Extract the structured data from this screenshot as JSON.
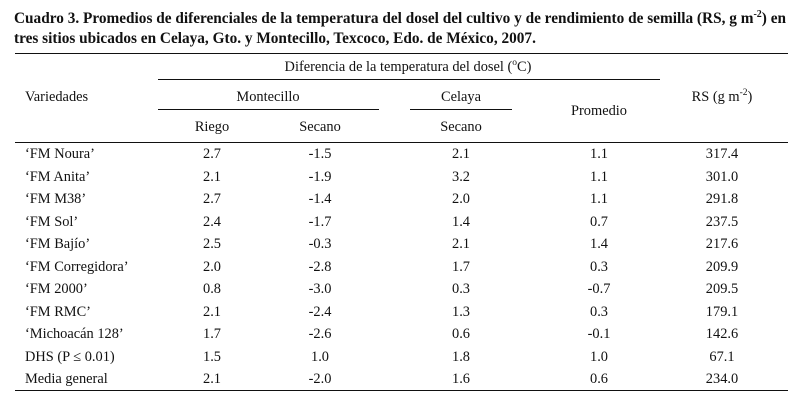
{
  "caption": {
    "label": "Cuadro 3.",
    "text_before_sup": "Promedios de diferenciales de la temperatura del dosel del cultivo y de rendimiento de semilla (RS, g m",
    "sup": "-2",
    "text_after_sup": ") en tres sitios ubicados en Celaya, Gto. y Montecillo, Texcoco, Edo. de México, 2007."
  },
  "header": {
    "variedades": "Variedades",
    "group_title": "Diferencia de la temperatura del dosel (",
    "group_title_sup": "o",
    "group_title_end": "C)",
    "montecillo": "Montecillo",
    "celaya": "Celaya",
    "riego": "Riego",
    "secano": "Secano",
    "celaya_secano": "Secano",
    "promedio": "Promedio",
    "rs": "RS (g m",
    "rs_sup": "-2",
    "rs_end": ")"
  },
  "rows": [
    {
      "variedad": "‘FM Noura’",
      "riego": "2.7",
      "secano": "-1.5",
      "celaya": "2.1",
      "promedio": "1.1",
      "rs": "317.4"
    },
    {
      "variedad": "‘FM Anita’",
      "riego": "2.1",
      "secano": "-1.9",
      "celaya": "3.2",
      "promedio": "1.1",
      "rs": "301.0"
    },
    {
      "variedad": "‘FM M38’",
      "riego": "2.7",
      "secano": "-1.4",
      "celaya": "2.0",
      "promedio": "1.1",
      "rs": "291.8"
    },
    {
      "variedad": "‘FM Sol’",
      "riego": "2.4",
      "secano": "-1.7",
      "celaya": "1.4",
      "promedio": "0.7",
      "rs": "237.5"
    },
    {
      "variedad": "‘FM Bajío’",
      "riego": "2.5",
      "secano": "-0.3",
      "celaya": "2.1",
      "promedio": "1.4",
      "rs": "217.6"
    },
    {
      "variedad": "‘FM Corregidora’",
      "riego": "2.0",
      "secano": "-2.8",
      "celaya": "1.7",
      "promedio": "0.3",
      "rs": "209.9"
    },
    {
      "variedad": "‘FM 2000’",
      "riego": "0.8",
      "secano": "-3.0",
      "celaya": "0.3",
      "promedio": "-0.7",
      "rs": "209.5"
    },
    {
      "variedad": "‘FM RMC’",
      "riego": "2.1",
      "secano": "-2.4",
      "celaya": "1.3",
      "promedio": "0.3",
      "rs": "179.1"
    },
    {
      "variedad": "‘Michoacán 128’",
      "riego": "1.7",
      "secano": "-2.6",
      "celaya": "0.6",
      "promedio": "-0.1",
      "rs": "142.6"
    },
    {
      "variedad": "DHS (P ≤ 0.01)",
      "riego": "1.5",
      "secano": "1.0",
      "celaya": "1.8",
      "promedio": "1.0",
      "rs": "67.1"
    },
    {
      "variedad": "Media general",
      "riego": "2.1",
      "secano": "-2.0",
      "celaya": "1.6",
      "promedio": "0.6",
      "rs": "234.0"
    }
  ]
}
